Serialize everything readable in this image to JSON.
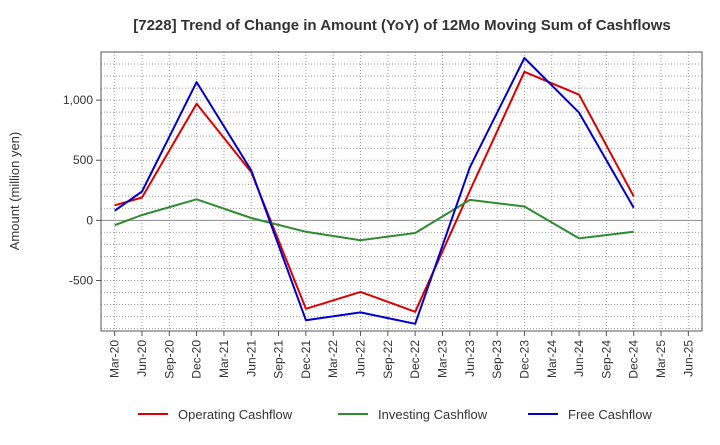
{
  "chart_data": {
    "type": "line",
    "title": "[7228]  Trend of Change in Amount (YoY) of 12Mo Moving Sum of Cashflows",
    "xlabel": "",
    "ylabel": "Amount (million yen)",
    "ylim": [
      -920,
      1400
    ],
    "yticks": [
      1000,
      500,
      0,
      -500
    ],
    "ytick_labels": [
      "1,000",
      "500",
      "0",
      "-500"
    ],
    "grid": true,
    "legend_position": "bottom",
    "categories": [
      "Mar-20",
      "Jun-20",
      "Sep-20",
      "Dec-20",
      "Mar-21",
      "Jun-21",
      "Sep-21",
      "Dec-21",
      "Mar-22",
      "Jun-22",
      "Sep-22",
      "Dec-22",
      "Mar-23",
      "Jun-23",
      "Sep-23",
      "Dec-23",
      "Mar-24",
      "Jun-24",
      "Sep-24",
      "Dec-24",
      "Mar-25",
      "Jun-25"
    ],
    "series": [
      {
        "name": "Operating Cashflow",
        "color": "#dd0000",
        "values": [
          125,
          190,
          null,
          970,
          null,
          400,
          null,
          -735,
          null,
          -595,
          null,
          -760,
          null,
          245,
          null,
          1235,
          null,
          1045,
          null,
          200,
          null,
          null
        ]
      },
      {
        "name": "Investing Cashflow",
        "color": "#2e8b2e",
        "values": [
          -40,
          45,
          null,
          175,
          null,
          20,
          null,
          -95,
          null,
          -165,
          null,
          -105,
          null,
          170,
          null,
          115,
          null,
          -150,
          null,
          -95,
          null,
          null
        ]
      },
      {
        "name": "Free Cashflow",
        "color": "#0000cc",
        "values": [
          80,
          240,
          null,
          1150,
          null,
          415,
          null,
          -830,
          null,
          -765,
          null,
          -860,
          null,
          440,
          null,
          1350,
          null,
          895,
          null,
          105,
          null,
          null
        ]
      }
    ]
  }
}
